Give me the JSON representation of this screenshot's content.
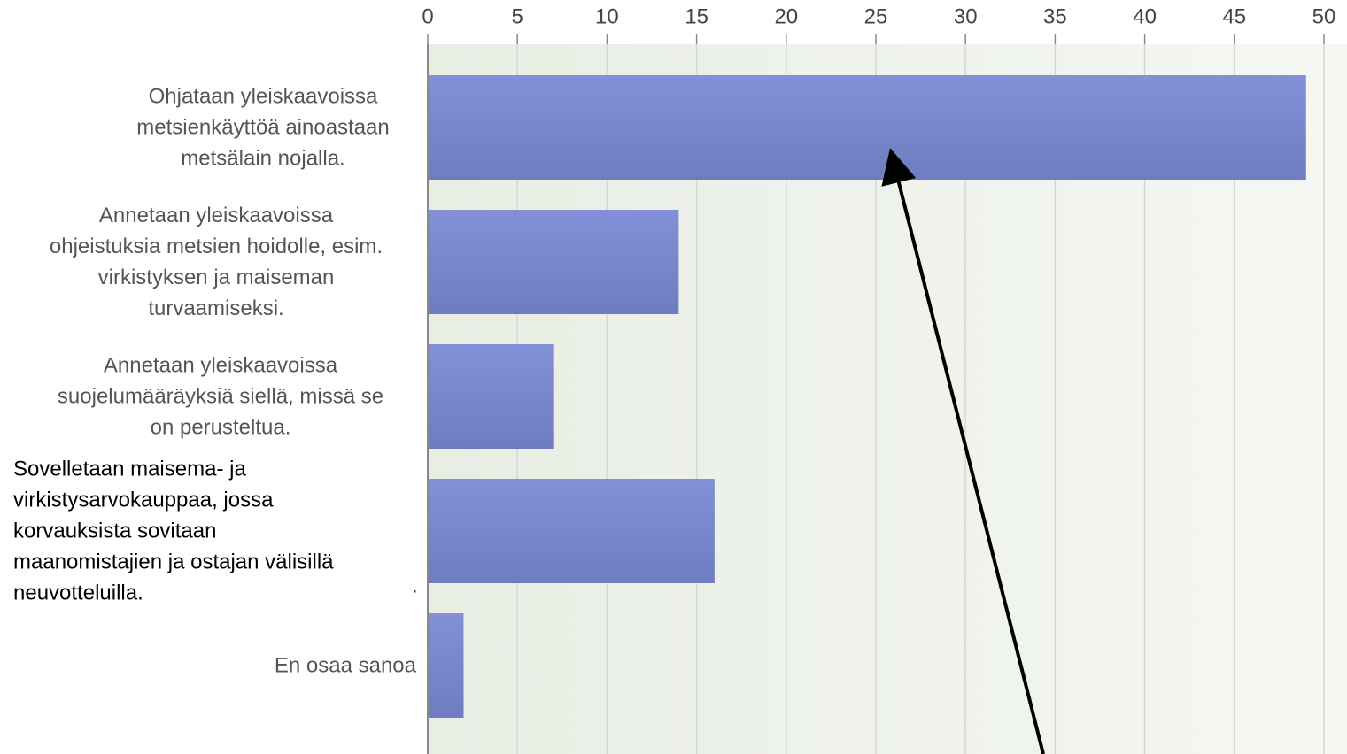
{
  "chart_data": {
    "type": "bar",
    "orientation": "horizontal",
    "categories": [
      "Ohjataan yleiskaavoissa\nmetsienkäyttöä ainoastaan\nmetsälain nojalla.",
      "Annetaan yleiskaavoissa\nohjeistuksia metsien hoidolle, esim.\nvirkistyksen ja maiseman\nturvaamiseksi.",
      "Annetaan yleiskaavoissa\nsuojelumääräyksiä siellä, missä se\non perusteltua.",
      "Sovelletaan maisema- ja\nvirkistysarvokauppaa, jossa\nkorvauksista sovitaan\nmaanomistajien ja ostajan välisillä\nneuvotteluilla.",
      "En osaa sanoa"
    ],
    "values": [
      49,
      14,
      7,
      16,
      2
    ],
    "color": "#7a87cc",
    "xlim": [
      0,
      51.3
    ],
    "xticks": [
      0,
      5,
      10,
      15,
      20,
      25,
      30,
      35,
      40,
      45,
      50
    ],
    "grid": true,
    "annotations": [
      "."
    ]
  }
}
